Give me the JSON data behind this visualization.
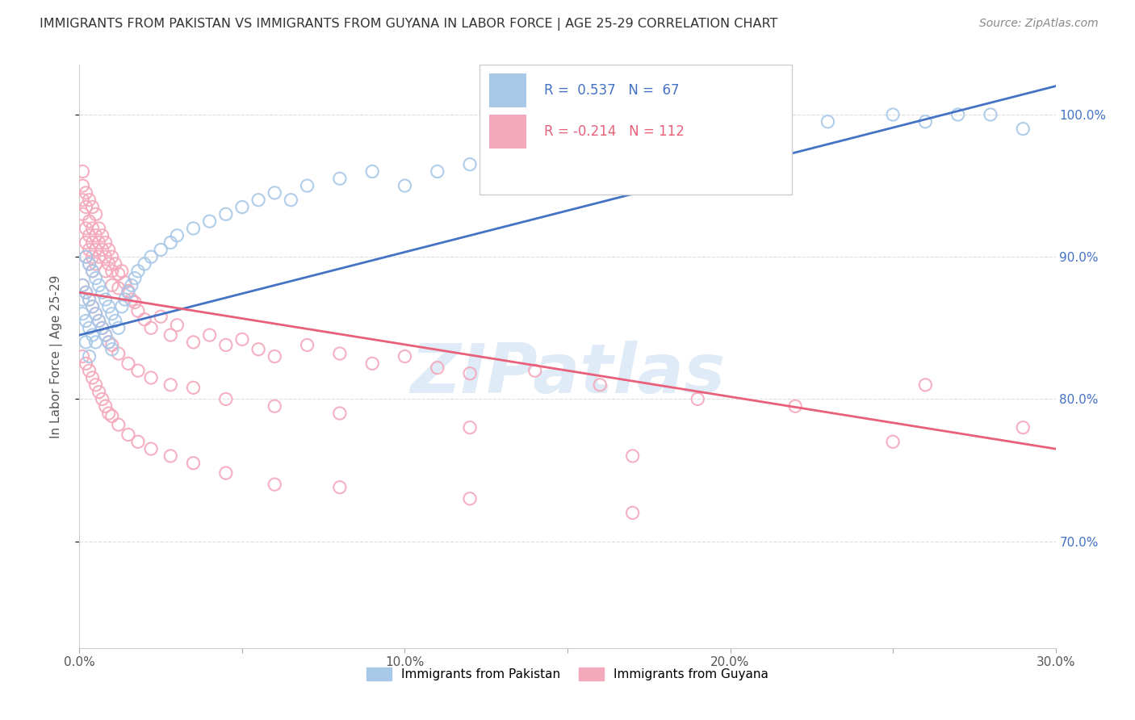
{
  "title": "IMMIGRANTS FROM PAKISTAN VS IMMIGRANTS FROM GUYANA IN LABOR FORCE | AGE 25-29 CORRELATION CHART",
  "source": "Source: ZipAtlas.com",
  "ylabel": "In Labor Force | Age 25-29",
  "xlim": [
    0.0,
    0.3
  ],
  "ylim": [
    0.625,
    1.035
  ],
  "xtick_labels": [
    "0.0%",
    "",
    "10.0%",
    "",
    "20.0%",
    "",
    "30.0%"
  ],
  "xtick_vals": [
    0.0,
    0.05,
    0.1,
    0.15,
    0.2,
    0.25,
    0.3
  ],
  "ytick_vals": [
    0.7,
    0.8,
    0.9,
    1.0
  ],
  "ytick_labels": [
    "70.0%",
    "80.0%",
    "90.0%",
    "100.0%"
  ],
  "pakistan_color": "#a8c8e8",
  "guyana_color": "#f4a8bc",
  "pakistan_line_color": "#4472c4",
  "guyana_line_color": "#e8607a",
  "pakistan_R": 0.537,
  "pakistan_N": 67,
  "guyana_R": -0.214,
  "guyana_N": 112,
  "pk_trend_x0": 0.0,
  "pk_trend_y0": 0.845,
  "pk_trend_x1": 0.3,
  "pk_trend_y1": 1.02,
  "gy_trend_x0": 0.0,
  "gy_trend_y0": 0.875,
  "gy_trend_x1": 0.3,
  "gy_trend_y1": 0.765,
  "watermark_text": "ZIPatlas",
  "watermark_color": "#c0d8f0",
  "watermark_alpha": 0.5,
  "background_color": "#ffffff",
  "grid_color": "#dddddd",
  "title_color": "#333333",
  "right_tick_color": "#4472c4",
  "legend_pakistan_label": "Immigrants from Pakistan",
  "legend_guyana_label": "Immigrants from Guyana",
  "pakistan_scatter_x": [
    0.001,
    0.001,
    0.001,
    0.002,
    0.002,
    0.002,
    0.002,
    0.003,
    0.003,
    0.003,
    0.003,
    0.004,
    0.004,
    0.004,
    0.005,
    0.005,
    0.005,
    0.006,
    0.006,
    0.007,
    0.007,
    0.008,
    0.008,
    0.009,
    0.009,
    0.01,
    0.01,
    0.011,
    0.012,
    0.013,
    0.014,
    0.015,
    0.016,
    0.017,
    0.018,
    0.02,
    0.022,
    0.025,
    0.028,
    0.03,
    0.035,
    0.04,
    0.045,
    0.05,
    0.055,
    0.06,
    0.065,
    0.07,
    0.08,
    0.09,
    0.1,
    0.11,
    0.12,
    0.13,
    0.14,
    0.15,
    0.16,
    0.17,
    0.18,
    0.2,
    0.21,
    0.23,
    0.25,
    0.26,
    0.27,
    0.28,
    0.29
  ],
  "pakistan_scatter_y": [
    0.88,
    0.87,
    0.86,
    0.9,
    0.875,
    0.855,
    0.84,
    0.895,
    0.87,
    0.85,
    0.83,
    0.89,
    0.865,
    0.845,
    0.885,
    0.86,
    0.84,
    0.88,
    0.855,
    0.875,
    0.85,
    0.87,
    0.845,
    0.865,
    0.84,
    0.86,
    0.835,
    0.855,
    0.85,
    0.865,
    0.87,
    0.875,
    0.88,
    0.885,
    0.89,
    0.895,
    0.9,
    0.905,
    0.91,
    0.915,
    0.92,
    0.925,
    0.93,
    0.935,
    0.94,
    0.945,
    0.94,
    0.95,
    0.955,
    0.96,
    0.95,
    0.96,
    0.965,
    0.965,
    0.97,
    0.975,
    0.98,
    0.975,
    0.985,
    0.99,
    0.985,
    0.995,
    1.0,
    0.995,
    1.0,
    1.0,
    0.99
  ],
  "guyana_scatter_x": [
    0.001,
    0.001,
    0.001,
    0.001,
    0.002,
    0.002,
    0.002,
    0.002,
    0.002,
    0.003,
    0.003,
    0.003,
    0.003,
    0.003,
    0.004,
    0.004,
    0.004,
    0.004,
    0.004,
    0.005,
    0.005,
    0.005,
    0.005,
    0.006,
    0.006,
    0.006,
    0.007,
    0.007,
    0.008,
    0.008,
    0.008,
    0.009,
    0.009,
    0.01,
    0.01,
    0.01,
    0.011,
    0.012,
    0.012,
    0.013,
    0.014,
    0.015,
    0.016,
    0.017,
    0.018,
    0.02,
    0.022,
    0.025,
    0.028,
    0.03,
    0.035,
    0.04,
    0.045,
    0.05,
    0.055,
    0.06,
    0.07,
    0.08,
    0.09,
    0.1,
    0.11,
    0.12,
    0.14,
    0.16,
    0.19,
    0.22,
    0.26,
    0.29,
    0.001,
    0.002,
    0.003,
    0.004,
    0.005,
    0.006,
    0.007,
    0.008,
    0.009,
    0.01,
    0.012,
    0.015,
    0.018,
    0.022,
    0.028,
    0.035,
    0.045,
    0.06,
    0.08,
    0.12,
    0.17,
    0.001,
    0.002,
    0.003,
    0.004,
    0.005,
    0.006,
    0.007,
    0.008,
    0.009,
    0.01,
    0.012,
    0.015,
    0.018,
    0.022,
    0.028,
    0.035,
    0.045,
    0.06,
    0.08,
    0.12,
    0.17,
    0.25
  ],
  "guyana_scatter_y": [
    0.95,
    0.96,
    0.94,
    0.93,
    0.945,
    0.935,
    0.92,
    0.91,
    0.9,
    0.94,
    0.925,
    0.915,
    0.905,
    0.895,
    0.935,
    0.92,
    0.91,
    0.9,
    0.89,
    0.93,
    0.915,
    0.905,
    0.895,
    0.92,
    0.91,
    0.9,
    0.915,
    0.905,
    0.91,
    0.9,
    0.89,
    0.905,
    0.895,
    0.9,
    0.89,
    0.88,
    0.895,
    0.888,
    0.878,
    0.89,
    0.882,
    0.876,
    0.87,
    0.868,
    0.862,
    0.856,
    0.85,
    0.858,
    0.845,
    0.852,
    0.84,
    0.845,
    0.838,
    0.842,
    0.835,
    0.83,
    0.838,
    0.832,
    0.825,
    0.83,
    0.822,
    0.818,
    0.82,
    0.81,
    0.8,
    0.795,
    0.81,
    0.78,
    0.88,
    0.875,
    0.87,
    0.865,
    0.86,
    0.855,
    0.85,
    0.845,
    0.84,
    0.838,
    0.832,
    0.825,
    0.82,
    0.815,
    0.81,
    0.808,
    0.8,
    0.795,
    0.79,
    0.78,
    0.76,
    0.83,
    0.825,
    0.82,
    0.815,
    0.81,
    0.805,
    0.8,
    0.795,
    0.79,
    0.788,
    0.782,
    0.775,
    0.77,
    0.765,
    0.76,
    0.755,
    0.748,
    0.74,
    0.738,
    0.73,
    0.72,
    0.77
  ]
}
